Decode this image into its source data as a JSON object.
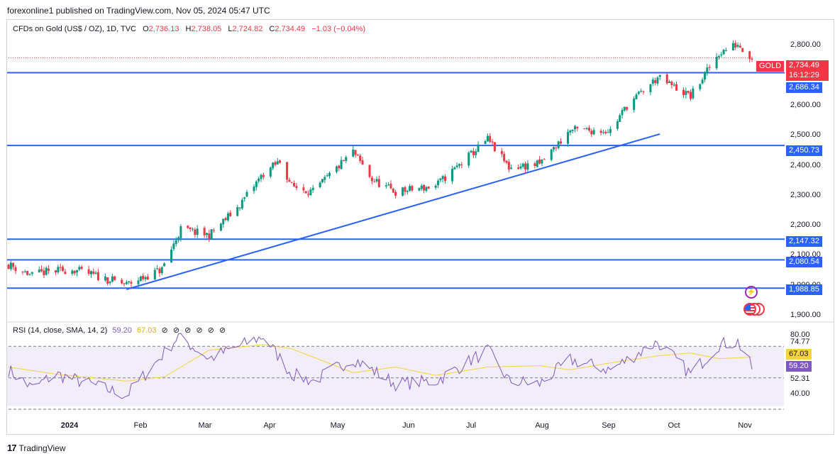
{
  "header": {
    "publisher_line": "forexonline1 published on TradingView.com, Nov 05, 2024 05:47 UTC"
  },
  "legend": {
    "symbol": "CFDs on Gold (US$ / OZ), 1D, TVC",
    "open_label": "O",
    "open": "2,736.13",
    "high_label": "H",
    "high": "2,738.05",
    "low_label": "L",
    "low": "2,724.82",
    "close_label": "C",
    "close": "2,734.49",
    "change": "−1.03 (−0.04%)"
  },
  "price_badge": {
    "ticker": "GOLD",
    "price": "2,734.49",
    "countdown": "16:12:29"
  },
  "level_badges": [
    "2,686.34",
    "2,450.73",
    "2,147.32",
    "2,080.54",
    "1,988.85"
  ],
  "price_axis_labels": [
    "2,800.00",
    "2,600.00",
    "2,500.00",
    "2,400.00",
    "2,300.00",
    "2,200.00",
    "2,100.00",
    "2,000.00",
    "1,900.00"
  ],
  "rsi": {
    "legend": "RSI (14, close, SMA, 14, 2)",
    "rsi_value": "59.20",
    "sma_value": "67.03",
    "axis_labels": [
      "80.00",
      "74.77",
      "52.31",
      "40.00"
    ],
    "rsi_color": "#7e57c2",
    "sma_color": "#f7d23c"
  },
  "months": [
    "2024",
    "Feb",
    "Mar",
    "Apr",
    "May",
    "Jun",
    "Jul",
    "Aug",
    "Sep",
    "Oct",
    "Nov"
  ],
  "footer": {
    "brand": "TradingView"
  },
  "colors": {
    "up": "#089981",
    "down": "#f23645",
    "level": "#2962ff",
    "trend": "#2962ff"
  },
  "chart_data": {
    "type": "candlestick",
    "title": "CFDs on Gold (US$ / OZ), 1D, TVC",
    "ylabel": "",
    "ylim": [
      1900,
      2830
    ],
    "y_ticks": [
      2800,
      2600,
      2500,
      2400,
      2300,
      2200,
      2100,
      2000,
      1900
    ],
    "x_ticks": [
      "2024",
      "Feb",
      "Mar",
      "Apr",
      "May",
      "Jun",
      "Jul",
      "Aug",
      "Sep",
      "Oct",
      "Nov"
    ],
    "x_start": "2023-12-26",
    "x_end": "2024-11-05",
    "horizontal_levels": [
      2686.34,
      2450.73,
      2147.32,
      2080.54,
      1988.85
    ],
    "last_price": 2734.49,
    "trendline": [
      {
        "date": "2024-02-14",
        "price": 1985
      },
      {
        "date": "2024-09-27",
        "price": 2488
      }
    ],
    "close_path": [
      {
        "date": "2023-12-26",
        "close": 2065
      },
      {
        "date": "2024-01-05",
        "close": 2030
      },
      {
        "date": "2024-01-10",
        "close": 2040
      },
      {
        "date": "2024-01-22",
        "close": 2050
      },
      {
        "date": "2024-02-14",
        "close": 2000
      },
      {
        "date": "2024-02-29",
        "close": 2050
      },
      {
        "date": "2024-03-08",
        "close": 2180
      },
      {
        "date": "2024-03-20",
        "close": 2160
      },
      {
        "date": "2024-04-01",
        "close": 2250
      },
      {
        "date": "2024-04-12",
        "close": 2360
      },
      {
        "date": "2024-04-19",
        "close": 2400
      },
      {
        "date": "2024-04-24",
        "close": 2320
      },
      {
        "date": "2024-05-03",
        "close": 2300
      },
      {
        "date": "2024-05-20",
        "close": 2430
      },
      {
        "date": "2024-05-28",
        "close": 2340
      },
      {
        "date": "2024-06-07",
        "close": 2300
      },
      {
        "date": "2024-06-24",
        "close": 2320
      },
      {
        "date": "2024-07-16",
        "close": 2470
      },
      {
        "date": "2024-07-25",
        "close": 2380
      },
      {
        "date": "2024-08-07",
        "close": 2390
      },
      {
        "date": "2024-08-20",
        "close": 2500
      },
      {
        "date": "2024-09-06",
        "close": 2500
      },
      {
        "date": "2024-09-13",
        "close": 2580
      },
      {
        "date": "2024-09-26",
        "close": 2670
      },
      {
        "date": "2024-10-10",
        "close": 2610
      },
      {
        "date": "2024-10-22",
        "close": 2750
      },
      {
        "date": "2024-10-30",
        "close": 2780
      },
      {
        "date": "2024-11-05",
        "close": 2734.49
      }
    ],
    "rsi": {
      "ylim": [
        30,
        85
      ],
      "levels": [
        74.77,
        52.31
      ],
      "last_rsi": 59.2,
      "last_sma": 67.03,
      "rsi_path": [
        {
          "date": "2023-12-26",
          "value": 58
        },
        {
          "date": "2024-01-05",
          "value": 45
        },
        {
          "date": "2024-01-15",
          "value": 55
        },
        {
          "date": "2024-02-14",
          "value": 40
        },
        {
          "date": "2024-03-01",
          "value": 70
        },
        {
          "date": "2024-03-07",
          "value": 82
        },
        {
          "date": "2024-03-20",
          "value": 66
        },
        {
          "date": "2024-04-12",
          "value": 82
        },
        {
          "date": "2024-04-24",
          "value": 55
        },
        {
          "date": "2024-05-03",
          "value": 50
        },
        {
          "date": "2024-05-20",
          "value": 66
        },
        {
          "date": "2024-06-07",
          "value": 48
        },
        {
          "date": "2024-06-24",
          "value": 50
        },
        {
          "date": "2024-07-16",
          "value": 72
        },
        {
          "date": "2024-07-25",
          "value": 50
        },
        {
          "date": "2024-08-07",
          "value": 48
        },
        {
          "date": "2024-08-20",
          "value": 65
        },
        {
          "date": "2024-09-06",
          "value": 58
        },
        {
          "date": "2024-09-26",
          "value": 78
        },
        {
          "date": "2024-10-10",
          "value": 55
        },
        {
          "date": "2024-10-22",
          "value": 76
        },
        {
          "date": "2024-10-30",
          "value": 78
        },
        {
          "date": "2024-11-05",
          "value": 59.2
        }
      ],
      "sma_path": [
        {
          "date": "2023-12-26",
          "value": 60
        },
        {
          "date": "2024-01-15",
          "value": 55
        },
        {
          "date": "2024-02-14",
          "value": 50
        },
        {
          "date": "2024-03-01",
          "value": 53
        },
        {
          "date": "2024-03-20",
          "value": 72
        },
        {
          "date": "2024-04-12",
          "value": 76
        },
        {
          "date": "2024-04-24",
          "value": 73
        },
        {
          "date": "2024-05-20",
          "value": 56
        },
        {
          "date": "2024-06-07",
          "value": 60
        },
        {
          "date": "2024-06-24",
          "value": 54
        },
        {
          "date": "2024-07-16",
          "value": 60
        },
        {
          "date": "2024-08-07",
          "value": 61
        },
        {
          "date": "2024-08-20",
          "value": 58
        },
        {
          "date": "2024-09-06",
          "value": 63
        },
        {
          "date": "2024-09-26",
          "value": 68
        },
        {
          "date": "2024-10-10",
          "value": 70
        },
        {
          "date": "2024-10-22",
          "value": 66
        },
        {
          "date": "2024-11-05",
          "value": 67.03
        }
      ]
    }
  }
}
